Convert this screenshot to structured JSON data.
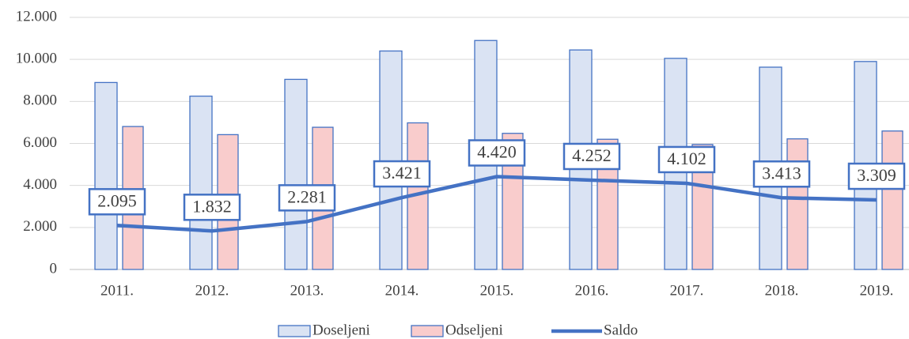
{
  "chart_data": {
    "type": "bar-line",
    "categories": [
      "2011.",
      "2012.",
      "2013.",
      "2014.",
      "2015.",
      "2016.",
      "2017.",
      "2018.",
      "2019."
    ],
    "series": [
      {
        "name": "Doseljeni",
        "color": "#dae3f3",
        "values": [
          8900,
          8250,
          9050,
          10400,
          10900,
          10450,
          10050,
          9630,
          9900
        ]
      },
      {
        "name": "Odseljeni",
        "color": "#f9cccc",
        "values": [
          6805,
          6418,
          6769,
          6979,
          6480,
          6198,
          5948,
          6217,
          6591
        ]
      },
      {
        "name": "Saldo",
        "color": "#4472c4",
        "type": "line",
        "values": [
          2095,
          1832,
          2281,
          3421,
          4420,
          4252,
          4102,
          3413,
          3309
        ],
        "value_labels": [
          "2.095",
          "1.832",
          "2.281",
          "3.421",
          "4.420",
          "4.252",
          "4.102",
          "3.413",
          "3.309"
        ]
      }
    ],
    "ylim": [
      0,
      12000
    ],
    "yticks": [
      0,
      {
        "value": 2000,
        "label": "2.000"
      },
      {
        "value": 4000,
        "label": "4.000"
      },
      {
        "value": 6000,
        "label": "6.000"
      },
      {
        "value": 8000,
        "label": "8.000"
      },
      {
        "value": 10000,
        "label": "10.000"
      },
      {
        "value": 12000,
        "label": "12.000"
      }
    ],
    "grid": true,
    "legend": "bottom",
    "bar_edge_color": "#4472c4"
  }
}
